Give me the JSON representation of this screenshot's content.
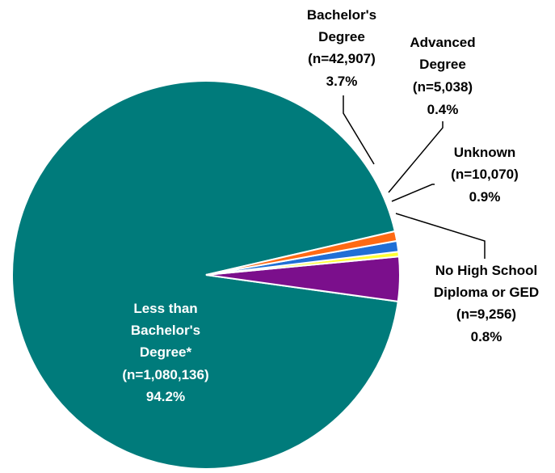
{
  "chart_data": {
    "type": "pie",
    "title": "",
    "slices": [
      {
        "label_lines": [
          "Less than",
          "Bachelor's",
          "Degree*"
        ],
        "n": "(n=1,080,136)",
        "pct": "94.2%",
        "value": 94.2,
        "color": "#007B7B"
      },
      {
        "label_lines": [
          "Bachelor's",
          "Degree"
        ],
        "n": "(n=42,907)",
        "pct": "3.7%",
        "value": 3.7,
        "color": "#7B0F8C"
      },
      {
        "label_lines": [
          "Advanced",
          "Degree"
        ],
        "n": "(n=5,038)",
        "pct": "0.4%",
        "value": 0.4,
        "color": "#FFFF33"
      },
      {
        "label_lines": [
          "Unknown"
        ],
        "n": "(n=10,070)",
        "pct": "0.9%",
        "value": 0.9,
        "color": "#1F6FD6"
      },
      {
        "label_lines": [
          "No High School",
          "Diploma or GED"
        ],
        "n": "(n=9,256)",
        "pct": "0.8%",
        "value": 0.8,
        "color": "#FF6A13"
      }
    ]
  }
}
